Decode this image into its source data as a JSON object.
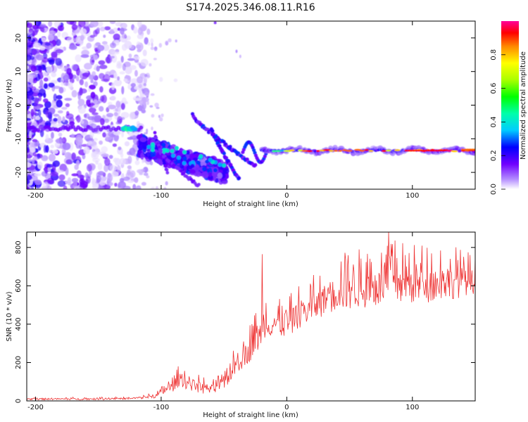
{
  "title": "S174.2025.346.08.11.R16",
  "chart_data": [
    {
      "type": "heatmap",
      "title": "S174.2025.346.08.11.R16",
      "xlabel": "Height of straight line (km)",
      "ylabel": "Frequency (Hz)",
      "xlim": [
        -207,
        150
      ],
      "ylim": [
        -25,
        25
      ],
      "xticks": [
        -200,
        -100,
        0,
        100
      ],
      "yticks": [
        20,
        10,
        0,
        -10,
        -20
      ],
      "colorbar": {
        "label": "Normalized spectral amplitude",
        "range": [
          0,
          1
        ],
        "ticks": [
          0.0,
          0.2,
          0.4,
          0.6,
          0.8
        ],
        "tick_labels": [
          "0.0",
          "0.2",
          "0.4",
          "0.6",
          "0.8"
        ]
      },
      "features": {
        "noise_region_x": [
          -207,
          -120
        ],
        "main_signal_freq_hz": -13.5,
        "main_signal_x": [
          -20,
          150
        ],
        "curved_streak_1": {
          "x": [
            -75,
            -25
          ],
          "freq": [
            -3,
            -18
          ]
        },
        "curved_streak_2": {
          "x": [
            -60,
            -38
          ],
          "freq": [
            -7,
            -22
          ]
        },
        "trace_near_minus7": {
          "x": [
            -210,
            -115
          ],
          "freq": -7
        }
      }
    },
    {
      "type": "line",
      "xlabel": "Height of straight line (km)",
      "ylabel": "SNR (10 * v/v)",
      "xlim": [
        -207,
        150
      ],
      "ylim": [
        0,
        880
      ],
      "xticks": [
        -200,
        -100,
        0,
        100
      ],
      "yticks": [
        0,
        200,
        400,
        600,
        800
      ],
      "color": "#ee3333",
      "envelope": {
        "x": [
          -207,
          -160,
          -120,
          -105,
          -100,
          -90,
          -85,
          -80,
          -70,
          -60,
          -50,
          -45,
          -40,
          -35,
          -30,
          -25,
          -20,
          -19,
          -15,
          -10,
          -5,
          0,
          5,
          10,
          20,
          30,
          40,
          60,
          80,
          81,
          100,
          120,
          140,
          150
        ],
        "base": [
          5,
          5,
          8,
          15,
          25,
          50,
          80,
          60,
          40,
          30,
          50,
          100,
          140,
          170,
          200,
          240,
          280,
          330,
          330,
          340,
          330,
          330,
          350,
          380,
          400,
          450,
          470,
          480,
          480,
          500,
          500,
          520,
          540,
          560
        ],
        "amp": [
          15,
          15,
          15,
          30,
          50,
          90,
          120,
          110,
          100,
          90,
          100,
          140,
          160,
          180,
          200,
          230,
          250,
          260,
          220,
          200,
          200,
          220,
          220,
          240,
          250,
          260,
          300,
          320,
          330,
          360,
          320,
          310,
          260,
          200
        ]
      },
      "spikes": [
        {
          "x": -19.5,
          "y": 765
        },
        {
          "x": 81,
          "y": 880
        }
      ],
      "n_points": 700
    }
  ]
}
